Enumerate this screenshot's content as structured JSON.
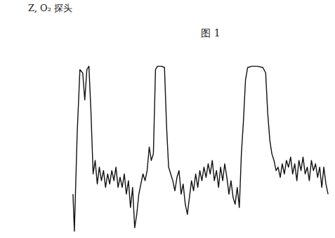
{
  "chart_data": {
    "type": "line",
    "title": "图 1",
    "annotations": [
      "Z, O₂ 探头"
    ],
    "x": [
      104,
      106,
      110,
      114,
      118,
      121,
      124,
      127,
      130,
      133,
      136,
      139,
      142,
      145,
      148,
      151,
      154,
      157,
      160,
      163,
      166,
      169,
      172,
      175,
      178,
      181,
      184,
      187,
      190,
      193,
      196,
      199,
      202,
      205,
      208,
      211,
      214,
      217,
      220,
      223,
      226,
      232,
      236,
      239,
      242,
      245,
      248,
      251,
      254,
      257,
      260,
      263,
      266,
      269,
      272,
      275,
      278,
      281,
      284,
      287,
      290,
      293,
      296,
      299,
      302,
      305,
      308,
      311,
      314,
      317,
      320,
      323,
      326,
      329,
      332,
      335,
      338,
      341,
      344,
      347,
      350,
      353,
      356,
      362,
      370,
      378,
      382,
      385,
      388,
      391,
      394,
      397,
      400,
      403,
      406,
      409,
      412,
      415,
      418,
      421,
      424,
      427,
      430,
      433,
      436,
      439,
      442,
      445,
      448,
      451,
      454,
      457,
      460,
      463,
      466,
      469,
      472
    ],
    "values": [
      60,
      5,
      150,
      245,
      240,
      200,
      245,
      250,
      180,
      90,
      110,
      75,
      100,
      80,
      95,
      70,
      90,
      75,
      95,
      80,
      100,
      70,
      85,
      70,
      90,
      60,
      80,
      40,
      70,
      10,
      30,
      60,
      75,
      90,
      80,
      95,
      130,
      110,
      120,
      245,
      250,
      250,
      248,
      160,
      100,
      90,
      80,
      65,
      85,
      95,
      60,
      75,
      45,
      30,
      55,
      80,
      65,
      90,
      70,
      95,
      80,
      100,
      85,
      105,
      90,
      110,
      80,
      95,
      70,
      100,
      80,
      105,
      85,
      60,
      80,
      55,
      45,
      70,
      40,
      120,
      170,
      230,
      248,
      250,
      250,
      248,
      240,
      180,
      140,
      120,
      110,
      95,
      100,
      85,
      105,
      90,
      110,
      100,
      115,
      90,
      105,
      80,
      110,
      95,
      115,
      90,
      100,
      80,
      110,
      95,
      105,
      85,
      100,
      70,
      100,
      75,
      60
    ],
    "xlim": [
      100,
      477
    ],
    "ylim": [
      0,
      260
    ],
    "color": "#111111",
    "grid": false,
    "tick_labels": false
  }
}
